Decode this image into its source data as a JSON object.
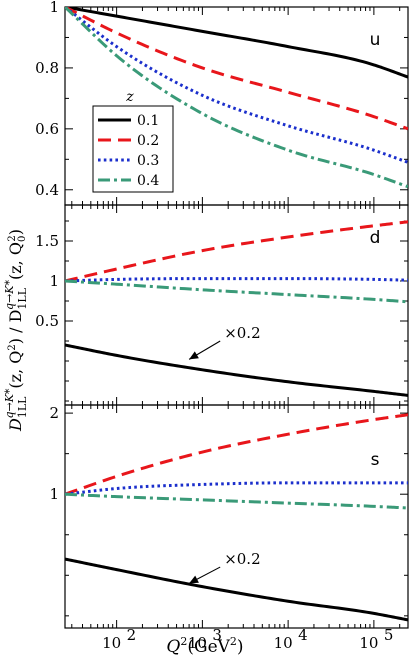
{
  "chart_data": {
    "type": "line",
    "x_scale": "log",
    "xlim": [
      25,
      250000
    ],
    "xlabel": "Q²(GeV²)",
    "ylabel": "D_{1LL}^{q→K*}(z, Q²) / D_{1LL}^{q→K*}(z, Q₀²)",
    "x_tick_labels": [
      {
        "value": 100,
        "base": "10",
        "exp": "2"
      },
      {
        "value": 1000,
        "base": "10",
        "exp": "3"
      },
      {
        "value": 10000,
        "base": "10",
        "exp": "4"
      },
      {
        "value": 100000,
        "base": "10",
        "exp": "5"
      }
    ],
    "x": [
      25,
      100,
      1000,
      10000,
      100000,
      250000
    ],
    "legend": {
      "title": "z",
      "placement": "left-middle of top panel",
      "entries": [
        "0.1",
        "0.2",
        "0.3",
        "0.4"
      ]
    },
    "series_styles": [
      {
        "name": "0.1",
        "color": "#000000",
        "dash": "solid"
      },
      {
        "name": "0.2",
        "color": "#e8161b",
        "dash": "dashed"
      },
      {
        "name": "0.3",
        "color": "#1b2fcc",
        "dash": "dotted"
      },
      {
        "name": "0.4",
        "color": "#3a9a78",
        "dash": "dash-dot"
      }
    ],
    "panels": [
      {
        "label": "u",
        "ylim": [
          0.35,
          1.0
        ],
        "yticks": [
          0.4,
          0.6,
          0.8,
          1.0
        ],
        "ytick_labels": [
          "0.4",
          "0.6",
          "0.8",
          "1"
        ],
        "annotation": null,
        "series": [
          {
            "name": "0.1",
            "values": [
              1.0,
              0.97,
              0.92,
              0.87,
              0.81,
              0.77
            ]
          },
          {
            "name": "0.2",
            "values": [
              1.0,
              0.915,
              0.8,
              0.72,
              0.64,
              0.6
            ]
          },
          {
            "name": "0.3",
            "values": [
              1.0,
              0.87,
              0.71,
              0.61,
              0.53,
              0.49
            ]
          },
          {
            "name": "0.4",
            "values": [
              1.0,
              0.84,
              0.65,
              0.53,
              0.45,
              0.41
            ]
          }
        ]
      },
      {
        "label": "d",
        "ylim": [
          -0.55,
          1.95
        ],
        "yticks": [
          0.5,
          1.0,
          1.5
        ],
        "ytick_labels": [
          "0.5",
          "1",
          "1.5"
        ],
        "annotation": {
          "text": "×0.2",
          "x": 2000,
          "y": 0.35,
          "arrow_to_x": 700,
          "arrow_to_y": 0.02
        },
        "series": [
          {
            "name": "0.1",
            "values": [
              0.2,
              0.07,
              -0.11,
              -0.26,
              -0.38,
              -0.43
            ]
          },
          {
            "name": "0.2",
            "values": [
              1.0,
              1.15,
              1.38,
              1.55,
              1.69,
              1.74
            ]
          },
          {
            "name": "0.3",
            "values": [
              1.0,
              1.02,
              1.03,
              1.03,
              1.02,
              1.01
            ]
          },
          {
            "name": "0.4",
            "values": [
              1.0,
              0.96,
              0.89,
              0.83,
              0.77,
              0.74
            ]
          }
        ]
      },
      {
        "label": "s",
        "ylim": [
          -0.65,
          2.1
        ],
        "yticks": [
          1.0,
          2.0
        ],
        "ytick_labels": [
          "1",
          "2"
        ],
        "annotation": {
          "text": "×0.2",
          "x": 2000,
          "y": 0.2,
          "arrow_to_x": 700,
          "arrow_to_y": -0.1
        },
        "series": [
          {
            "name": "0.1",
            "values": [
              0.2,
              0.07,
              -0.14,
              -0.32,
              -0.47,
              -0.55
            ]
          },
          {
            "name": "0.2",
            "values": [
              1.0,
              1.22,
              1.52,
              1.74,
              1.92,
              1.98
            ]
          },
          {
            "name": "0.3",
            "values": [
              1.0,
              1.07,
              1.12,
              1.14,
              1.14,
              1.14
            ]
          },
          {
            "name": "0.4",
            "values": [
              1.0,
              0.97,
              0.93,
              0.89,
              0.85,
              0.83
            ]
          }
        ]
      }
    ]
  }
}
